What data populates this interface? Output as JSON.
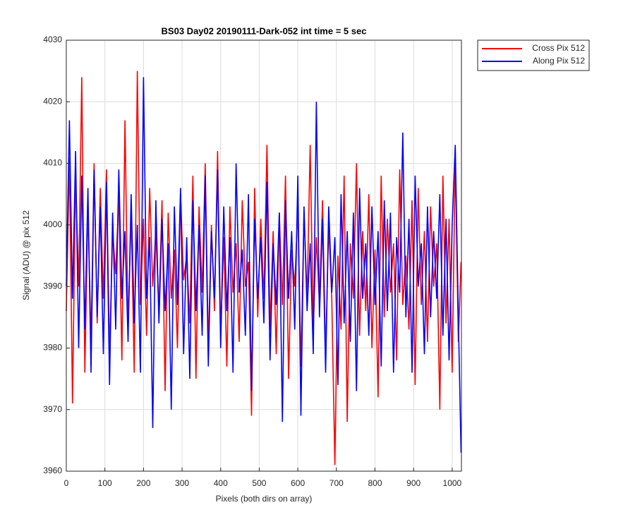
{
  "chart_data": {
    "type": "line",
    "title": "BS03 Day02 20190111-Dark-052 int time = 5 sec",
    "x_label": "Pixels (both dirs on array)",
    "y_label": "Signal (ADU) @ pix 512",
    "x": [
      0,
      8,
      16,
      24,
      32,
      40,
      48,
      56,
      64,
      72,
      80,
      88,
      96,
      104,
      112,
      120,
      128,
      136,
      144,
      152,
      160,
      168,
      176,
      184,
      192,
      200,
      208,
      216,
      224,
      232,
      240,
      248,
      256,
      264,
      272,
      280,
      288,
      296,
      304,
      312,
      320,
      328,
      336,
      344,
      352,
      360,
      368,
      376,
      384,
      392,
      400,
      408,
      416,
      424,
      432,
      440,
      448,
      456,
      464,
      472,
      480,
      488,
      496,
      504,
      512,
      520,
      528,
      536,
      544,
      552,
      560,
      568,
      576,
      584,
      592,
      600,
      608,
      616,
      624,
      632,
      640,
      648,
      656,
      664,
      672,
      680,
      688,
      696,
      704,
      712,
      720,
      728,
      736,
      744,
      752,
      760,
      768,
      776,
      784,
      792,
      800,
      808,
      816,
      824,
      832,
      840,
      848,
      856,
      864,
      872,
      880,
      888,
      896,
      904,
      912,
      920,
      928,
      936,
      944,
      952,
      960,
      968,
      976,
      984,
      992,
      1000,
      1008,
      1016,
      1023
    ],
    "series": [
      {
        "name": "Cross Pix 512",
        "color": "#ff0000",
        "values": [
          3986,
          4011,
          3971,
          4008,
          3990,
          4024,
          3976,
          4003,
          3981,
          4010,
          3984,
          4006,
          3988,
          4009,
          3979,
          3999,
          3992,
          4005,
          3978,
          4017,
          3983,
          4002,
          3976,
          4025,
          3987,
          4001,
          3982,
          4006,
          3990,
          3999,
          3986,
          4004,
          3973,
          4002,
          3988,
          3996,
          3980,
          4005,
          3991,
          3995,
          3984,
          4008,
          3975,
          4003,
          3989,
          4010,
          3980,
          4000,
          3986,
          4012,
          3982,
          3998,
          3977,
          4003,
          3989,
          3997,
          3981,
          4004,
          3990,
          3994,
          3969,
          4006,
          3985,
          4001,
          3988,
          4013,
          3983,
          3999,
          3979,
          4002,
          3987,
          4008,
          3975,
          3996,
          3990,
          4003,
          3977,
          4002,
          3988,
          4013,
          3983,
          3998,
          3987,
          4004,
          3979,
          4000,
          3988,
          3961,
          3995,
          3983,
          4008,
          3968,
          3997,
          3988,
          4010,
          3982,
          3999,
          3986,
          4005,
          3980,
          3996,
          3972,
          4008,
          3985,
          4001,
          3989,
          3997,
          3978,
          4009,
          3987,
          3995,
          3983,
          4004,
          3974,
          4006,
          3987,
          3999,
          3981,
          4003,
          3990,
          3997,
          3970,
          4008,
          3984,
          4001,
          3976,
          4011,
          3981,
          3994
        ]
      },
      {
        "name": "Along Pix 512",
        "color": "#0000ff",
        "values": [
          3990,
          4017,
          3988,
          4012,
          3980,
          4008,
          3983,
          4006,
          3976,
          4009,
          3985,
          4003,
          3979,
          4007,
          3974,
          4002,
          3983,
          4009,
          3988,
          3999,
          3981,
          4005,
          3984,
          4000,
          3976,
          4024,
          3988,
          3998,
          3967,
          4004,
          3984,
          4001,
          3986,
          3997,
          3970,
          4003,
          3987,
          4006,
          3979,
          3998,
          3975,
          4004,
          3986,
          4000,
          3982,
          4008,
          3977,
          3999,
          3988,
          4009,
          3980,
          4003,
          3986,
          3998,
          3976,
          4010,
          3989,
          3996,
          3982,
          4005,
          3973,
          4001,
          3988,
          3998,
          3984,
          4007,
          3978,
          3997,
          3987,
          4002,
          3968,
          4004,
          3988,
          3999,
          3983,
          4008,
          3969,
          4003,
          3986,
          3997,
          3979,
          4020,
          3985,
          4001,
          3976,
          4003,
          3989,
          3998,
          3974,
          4005,
          3984,
          3999,
          3981,
          4002,
          3973,
          4006,
          3988,
          3997,
          3982,
          4003,
          3987,
          3999,
          3977,
          4004,
          3986,
          4002,
          3976,
          3998,
          3989,
          4015,
          3985,
          4001,
          3976,
          4008,
          3990,
          3997,
          3979,
          4003,
          3985,
          3999,
          3988,
          4005,
          3982,
          4001,
          3978,
          4000,
          4013,
          3985,
          3963
        ]
      }
    ],
    "xlim": [
      0,
      1024
    ],
    "xticks": [
      0,
      100,
      200,
      300,
      400,
      500,
      600,
      700,
      800,
      900,
      1000
    ],
    "ylim": [
      3960,
      4030
    ],
    "yticks": [
      3960,
      3970,
      3980,
      3990,
      4000,
      4010,
      4020,
      4030
    ],
    "grid": true,
    "legend": "outside-top-right"
  }
}
